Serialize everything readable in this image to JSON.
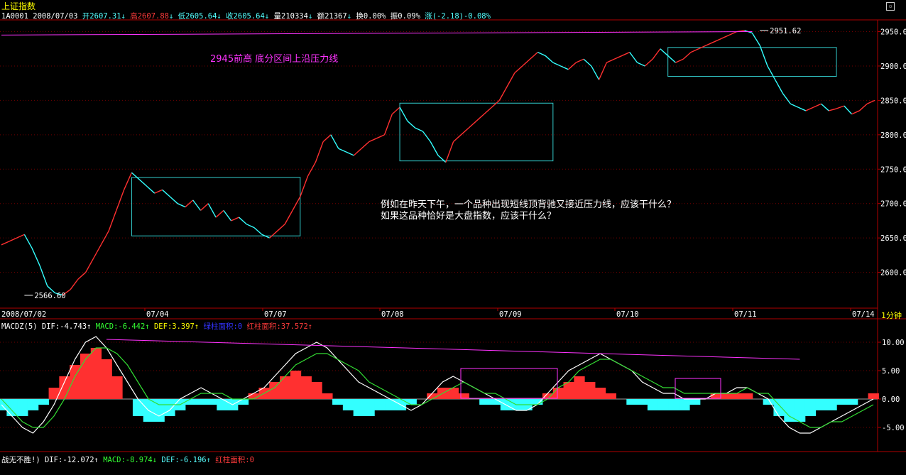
{
  "header": {
    "title": "上证指数",
    "code": "1A0001",
    "date": "2008/07/03",
    "open": "开2607.31",
    "high": "高2607.88",
    "low": "低2605.64",
    "close": "收2605.64",
    "volume": "量210334",
    "amount": "额21367",
    "turnover": "换0.00%",
    "amplitude": "振0.09%",
    "change": "涨(-2.18)-0.08%"
  },
  "annotations": {
    "top_text": "2945前高  底分区间上沿压力线",
    "question": "例如在昨天下午，一个品种出现短线顶背驰又接近压力线，应该干什么？如果这品种恰好是大盘指数，应该干什么？"
  },
  "period_label": "1分钟",
  "macd_legend": {
    "name": "MACDZ(5)",
    "dif": "DIF:-4.743",
    "macd": "MACD:-6.442",
    "def": "DEF:3.397",
    "green_area": "绿柱面积:0",
    "red_area": "红柱面积:37.572"
  },
  "bottom_legend": {
    "name": "战无不胜!)",
    "dif": "DIF:-12.072",
    "macd": "MACD:-8.974",
    "def": "DEF:-6.196",
    "red_area": "红柱面积:0"
  },
  "chart_data": [
    {
      "type": "line",
      "title": "上证指数 1分钟",
      "x_ticks": [
        "2008/07/02",
        "07/04",
        "07/07",
        "07/08",
        "07/09",
        "07/10",
        "07/11",
        "07/14"
      ],
      "y_ticks": [
        2600,
        2650,
        2700,
        2750,
        2800,
        2850,
        2900,
        2950
      ],
      "ylim": [
        2550,
        2965
      ],
      "y_tick_labels": [
        "2600.0",
        "2650.0",
        "2700.0",
        "2750.0",
        "2800.0",
        "2850.0",
        "2900.0",
        "2950.0"
      ],
      "marked_points": [
        {
          "label": "2566.60",
          "x_index": 3,
          "value": 2566.6
        },
        {
          "label": "2951.62",
          "x_index": 99,
          "value": 2951.62
        }
      ],
      "series": [
        {
          "values": [
            2640,
            2645,
            2650,
            2655,
            2635,
            2610,
            2580,
            2570,
            2567,
            2575,
            2590,
            2600,
            2620,
            2640,
            2660,
            2690,
            2720,
            2745,
            2735,
            2725,
            2715,
            2720,
            2710,
            2700,
            2695,
            2705,
            2690,
            2700,
            2680,
            2690,
            2675,
            2680,
            2670,
            2665,
            2655,
            2650,
            2660,
            2670,
            2690,
            2710,
            2740,
            2760,
            2790,
            2800,
            2780,
            2775,
            2770,
            2780,
            2790,
            2795,
            2800,
            2830,
            2840,
            2820,
            2810,
            2805,
            2790,
            2770,
            2760,
            2790,
            2800,
            2810,
            2820,
            2830,
            2840,
            2850,
            2870,
            2890,
            2900,
            2910,
            2920,
            2915,
            2905,
            2900,
            2895,
            2905,
            2910,
            2900,
            2880,
            2905,
            2910,
            2915,
            2920,
            2905,
            2900,
            2910,
            2925,
            2915,
            2905,
            2910,
            2920,
            2925,
            2930,
            2935,
            2940,
            2945,
            2950,
            2951.62,
            2948,
            2930,
            2900,
            2880,
            2860,
            2845,
            2840,
            2835,
            2840,
            2845,
            2835,
            2838,
            2842,
            2830,
            2835,
            2845,
            2850
          ]
        }
      ],
      "boxes": [
        {
          "x_range": [
            17,
            39
          ],
          "y_range": [
            2653,
            2738
          ]
        },
        {
          "x_range": [
            52,
            72
          ],
          "y_range": [
            2762,
            2846
          ]
        },
        {
          "x_range": [
            87,
            109
          ],
          "y_range": [
            2885,
            2927
          ]
        }
      ],
      "resistance_line": {
        "from": {
          "x_index": 0,
          "value": 2945
        },
        "to": {
          "x_index": 98,
          "value": 2950
        }
      }
    },
    {
      "type": "bar",
      "title": "MACDZ(5)",
      "y_ticks": [
        -5,
        0,
        5,
        10
      ],
      "y_tick_labels": [
        "-5.00",
        "0.00",
        "5.00",
        "10.00"
      ],
      "ylim": [
        -8.5,
        12.5
      ],
      "series": [
        {
          "name": "DIF",
          "values": [
            -1,
            -3,
            -5,
            -6,
            -4,
            -1,
            3,
            7,
            10,
            11,
            9,
            6,
            3,
            0,
            -2,
            -3,
            -2,
            0,
            1,
            2,
            1,
            0,
            -1,
            0,
            1,
            2,
            4,
            6,
            8,
            9,
            10,
            9,
            7,
            5,
            3,
            2,
            1,
            0,
            -1,
            -2,
            -1,
            1,
            3,
            4,
            3,
            2,
            1,
            0,
            -1,
            -2,
            -2,
            -1,
            1,
            3,
            5,
            6,
            7,
            8,
            7,
            6,
            5,
            3,
            2,
            1,
            1,
            0,
            0,
            0,
            1,
            1,
            2,
            2,
            1,
            0,
            -3,
            -5,
            -6,
            -6,
            -5,
            -4,
            -3,
            -2,
            -1,
            0
          ]
        },
        {
          "name": "MACD",
          "values": [
            0,
            -2,
            -4,
            -5,
            -5,
            -3,
            0,
            4,
            7,
            9,
            9,
            8,
            6,
            3,
            0,
            -1,
            -1,
            -1,
            0,
            1,
            1,
            1,
            0,
            0,
            0,
            1,
            2,
            4,
            6,
            7,
            8,
            8,
            7,
            6,
            5,
            3,
            2,
            1,
            0,
            -1,
            -1,
            0,
            1,
            2,
            3,
            2,
            1,
            1,
            0,
            -1,
            -1,
            -1,
            0,
            2,
            3,
            5,
            6,
            7,
            7,
            6,
            5,
            4,
            3,
            2,
            2,
            1,
            1,
            1,
            1,
            1,
            1,
            2,
            1,
            1,
            -1,
            -3,
            -4,
            -5,
            -5,
            -4,
            -4,
            -3,
            -2,
            -1
          ]
        },
        {
          "name": "histogram",
          "values": [
            -2,
            -3,
            -3,
            -2,
            -1,
            2,
            4,
            6,
            8,
            9,
            7,
            4,
            0,
            -3,
            -4,
            -4,
            -3,
            -2,
            -1,
            -1,
            -1,
            -2,
            -2,
            -1,
            1,
            2,
            3,
            4,
            5,
            4,
            3,
            1,
            -1,
            -2,
            -3,
            -3,
            -2,
            -2,
            -2,
            -1,
            0,
            1,
            2,
            2,
            1,
            0,
            -1,
            -1,
            -2,
            -2,
            -2,
            -1,
            1,
            2,
            3,
            4,
            3,
            2,
            1,
            0,
            -1,
            -1,
            -2,
            -2,
            -2,
            -2,
            -1,
            0,
            1,
            1,
            1,
            1,
            0,
            -1,
            -3,
            -4,
            -4,
            -3,
            -2,
            -2,
            -1,
            -1,
            0,
            1
          ]
        }
      ],
      "divergence_line": {
        "from": {
          "x_index": 10,
          "value": 10.5
        },
        "to": {
          "x_index": 76,
          "value": 7
        }
      }
    }
  ],
  "colors": {
    "up": "#ff3030",
    "down": "#33ffff",
    "axis": "#b00000",
    "dif": "#ffffff",
    "macd": "#33dd33",
    "resistance": "#ff33ff",
    "box": "#33cccc"
  }
}
